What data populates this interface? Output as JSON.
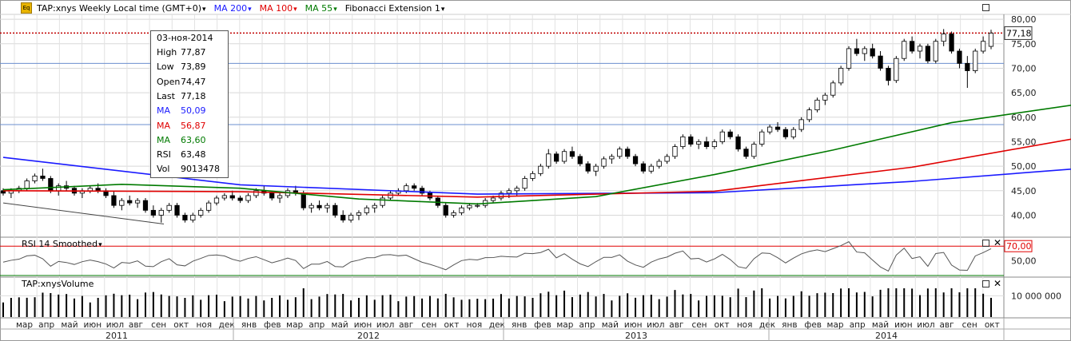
{
  "header": {
    "badge": "Eq",
    "symbol": "TAP:xnys Weekly Local time (GMT+0)",
    "ma200": "MA 200",
    "ma100": "MA 100",
    "ma55": "MA 55",
    "fib": "Fibonacci Extension 1",
    "colors": {
      "ma200": "#1a1aff",
      "ma100": "#e00000",
      "ma55": "#007a00"
    }
  },
  "tooltip": {
    "date": "03-ноя-2014",
    "rows": [
      {
        "label": "High",
        "value": "77,87",
        "color": "#000000"
      },
      {
        "label": "Low",
        "value": "73,89",
        "color": "#000000"
      },
      {
        "label": "Open",
        "value": "74,47",
        "color": "#000000"
      },
      {
        "label": "Last",
        "value": "77,18",
        "color": "#000000"
      },
      {
        "label": "MA",
        "value": "50,09",
        "color": "#1a1aff"
      },
      {
        "label": "MA",
        "value": "56,87",
        "color": "#e00000"
      },
      {
        "label": "MA",
        "value": "63,60",
        "color": "#007a00"
      },
      {
        "label": "RSI",
        "value": "63,48",
        "color": "#000000"
      },
      {
        "label": "Vol",
        "value": "9013478",
        "color": "#000000"
      }
    ]
  },
  "price_label": "77,18",
  "rsi_panel": {
    "title": "RSI 14 Smoothed",
    "level_label": "70,00",
    "ticks": [
      "50,00"
    ]
  },
  "volume_panel": {
    "title": "TAP:xnysVolume",
    "ticks": [
      "10 000 000"
    ]
  },
  "months": [
    "мар",
    "апр",
    "май",
    "июн",
    "июл",
    "авг",
    "сен",
    "окт",
    "ноя",
    "дек",
    "янв",
    "фев",
    "мар",
    "апр",
    "май",
    "июн",
    "июл",
    "авг",
    "сен",
    "окт",
    "ноя",
    "дек",
    "янв",
    "фев",
    "мар",
    "апр",
    "май",
    "июн",
    "июл",
    "авг",
    "сен",
    "окт",
    "ноя",
    "дек",
    "янв",
    "фев",
    "мар",
    "апр",
    "май",
    "июн",
    "июл",
    "авг",
    "сен",
    "окт"
  ],
  "years": [
    "2011",
    "2012",
    "2013",
    "2014"
  ],
  "chart_data": {
    "type": "candlestick",
    "x_range": [
      "2011-02",
      "2014-11"
    ],
    "ylim": [
      36,
      81
    ],
    "y_ticks": [
      40,
      45,
      50,
      55,
      60,
      65,
      70,
      75,
      80
    ],
    "last": 77.18,
    "candles_approx": [
      [
        45.0,
        45.5,
        44.0,
        44.5
      ],
      [
        44.5,
        45.5,
        43.5,
        45.0
      ],
      [
        45.0,
        46.0,
        44.5,
        45.5
      ],
      [
        45.5,
        47.5,
        45.0,
        47.0
      ],
      [
        47.0,
        48.5,
        46.5,
        48.0
      ],
      [
        48.0,
        49.5,
        47.0,
        47.5
      ],
      [
        47.5,
        48.0,
        44.5,
        45.0
      ],
      [
        45.0,
        46.5,
        44.0,
        46.0
      ],
      [
        46.0,
        47.0,
        45.0,
        45.5
      ],
      [
        45.5,
        46.0,
        44.0,
        44.5
      ],
      [
        44.5,
        45.5,
        43.5,
        45.0
      ],
      [
        45.0,
        46.0,
        44.5,
        45.5
      ],
      [
        45.5,
        46.5,
        44.5,
        45.0
      ],
      [
        45.0,
        45.5,
        43.5,
        44.0
      ],
      [
        44.0,
        45.0,
        41.5,
        42.0
      ],
      [
        42.0,
        43.5,
        41.0,
        43.0
      ],
      [
        43.0,
        44.0,
        42.0,
        42.5
      ],
      [
        42.5,
        43.5,
        41.5,
        43.0
      ],
      [
        43.0,
        43.5,
        40.5,
        41.0
      ],
      [
        41.0,
        42.0,
        39.5,
        40.0
      ],
      [
        40.0,
        41.5,
        38.5,
        41.0
      ],
      [
        41.0,
        42.5,
        40.5,
        42.0
      ],
      [
        42.0,
        42.5,
        39.5,
        40.0
      ],
      [
        40.0,
        40.5,
        38.5,
        39.0
      ],
      [
        39.0,
        40.5,
        38.5,
        40.0
      ],
      [
        40.0,
        41.5,
        39.5,
        41.0
      ],
      [
        41.0,
        43.0,
        40.5,
        42.5
      ],
      [
        42.5,
        44.0,
        42.0,
        43.5
      ],
      [
        43.5,
        44.5,
        43.0,
        44.0
      ],
      [
        44.0,
        45.0,
        43.0,
        43.5
      ],
      [
        43.5,
        44.0,
        42.5,
        43.0
      ],
      [
        43.0,
        44.5,
        42.5,
        44.0
      ],
      [
        44.0,
        45.5,
        43.5,
        45.0
      ],
      [
        45.0,
        46.0,
        44.0,
        44.5
      ],
      [
        44.5,
        45.0,
        43.0,
        43.5
      ],
      [
        43.5,
        44.5,
        42.5,
        44.0
      ],
      [
        44.0,
        45.5,
        43.5,
        45.0
      ],
      [
        45.0,
        46.0,
        44.0,
        44.5
      ],
      [
        44.5,
        45.0,
        41.0,
        41.5
      ],
      [
        41.5,
        42.5,
        40.5,
        42.0
      ],
      [
        42.0,
        43.0,
        41.0,
        41.5
      ],
      [
        41.5,
        42.5,
        40.5,
        42.0
      ],
      [
        42.0,
        42.5,
        39.5,
        40.0
      ],
      [
        40.0,
        41.0,
        38.5,
        39.0
      ],
      [
        39.0,
        40.5,
        38.5,
        40.0
      ],
      [
        40.0,
        41.0,
        39.0,
        40.5
      ],
      [
        40.5,
        42.0,
        40.0,
        41.5
      ],
      [
        41.5,
        42.5,
        40.5,
        42.0
      ],
      [
        42.0,
        44.0,
        41.5,
        43.5
      ],
      [
        43.5,
        45.0,
        43.0,
        44.5
      ],
      [
        44.5,
        45.5,
        44.0,
        45.0
      ],
      [
        45.0,
        46.5,
        44.5,
        46.0
      ],
      [
        46.0,
        46.5,
        45.0,
        45.5
      ],
      [
        45.5,
        46.0,
        44.0,
        44.5
      ],
      [
        44.5,
        45.0,
        43.0,
        43.5
      ],
      [
        43.5,
        44.0,
        41.5,
        42.0
      ],
      [
        42.0,
        42.5,
        39.5,
        40.0
      ],
      [
        40.0,
        41.0,
        39.5,
        40.5
      ],
      [
        40.5,
        42.0,
        40.0,
        41.5
      ],
      [
        41.5,
        42.5,
        41.0,
        42.0
      ],
      [
        42.0,
        42.5,
        41.5,
        42.0
      ],
      [
        42.0,
        43.5,
        41.5,
        43.0
      ],
      [
        43.0,
        44.0,
        42.5,
        43.5
      ],
      [
        43.5,
        45.0,
        43.0,
        44.5
      ],
      [
        44.5,
        45.5,
        43.5,
        45.0
      ],
      [
        45.0,
        46.0,
        44.0,
        45.5
      ],
      [
        45.5,
        48.0,
        45.0,
        47.5
      ],
      [
        47.5,
        49.0,
        47.0,
        48.5
      ],
      [
        48.5,
        50.5,
        48.0,
        50.0
      ],
      [
        50.0,
        53.5,
        49.5,
        52.5
      ],
      [
        52.5,
        53.0,
        50.5,
        51.0
      ],
      [
        51.0,
        53.5,
        50.5,
        53.0
      ],
      [
        53.0,
        54.0,
        51.5,
        52.0
      ],
      [
        52.0,
        52.5,
        50.0,
        50.5
      ],
      [
        50.5,
        51.0,
        48.5,
        49.0
      ],
      [
        49.0,
        50.5,
        48.0,
        50.0
      ],
      [
        50.0,
        52.0,
        49.5,
        51.5
      ],
      [
        51.5,
        52.5,
        50.5,
        52.0
      ],
      [
        52.0,
        54.0,
        51.5,
        53.5
      ],
      [
        53.5,
        54.0,
        51.5,
        52.0
      ],
      [
        52.0,
        52.5,
        50.0,
        50.5
      ],
      [
        50.5,
        51.0,
        48.5,
        49.0
      ],
      [
        49.0,
        50.5,
        48.5,
        50.0
      ],
      [
        50.0,
        51.5,
        49.5,
        51.0
      ],
      [
        51.0,
        52.5,
        50.5,
        52.0
      ],
      [
        52.0,
        54.5,
        51.5,
        54.0
      ],
      [
        54.0,
        56.5,
        53.5,
        56.0
      ],
      [
        56.0,
        56.5,
        54.0,
        54.5
      ],
      [
        54.5,
        55.5,
        53.5,
        55.0
      ],
      [
        55.0,
        56.0,
        53.5,
        54.0
      ],
      [
        54.0,
        55.5,
        53.5,
        55.0
      ],
      [
        55.0,
        57.5,
        54.5,
        57.0
      ],
      [
        57.0,
        57.5,
        55.5,
        56.0
      ],
      [
        56.0,
        56.5,
        53.0,
        53.5
      ],
      [
        53.5,
        54.0,
        51.5,
        52.0
      ],
      [
        52.0,
        55.0,
        51.5,
        54.5
      ],
      [
        54.5,
        57.5,
        54.0,
        57.0
      ],
      [
        57.0,
        58.5,
        56.5,
        58.0
      ],
      [
        58.0,
        59.0,
        57.0,
        57.5
      ],
      [
        57.5,
        58.0,
        55.5,
        56.0
      ],
      [
        56.0,
        58.0,
        55.5,
        57.5
      ],
      [
        57.5,
        60.0,
        57.0,
        59.5
      ],
      [
        59.5,
        62.0,
        59.0,
        61.5
      ],
      [
        61.5,
        64.0,
        61.0,
        63.5
      ],
      [
        63.5,
        65.0,
        62.5,
        64.5
      ],
      [
        64.5,
        67.5,
        64.0,
        67.0
      ],
      [
        67.0,
        70.5,
        66.5,
        70.0
      ],
      [
        70.0,
        74.5,
        69.5,
        74.0
      ],
      [
        74.0,
        76.0,
        72.5,
        73.0
      ],
      [
        73.0,
        74.5,
        71.5,
        74.0
      ],
      [
        74.0,
        75.0,
        72.0,
        72.5
      ],
      [
        72.5,
        73.5,
        69.5,
        70.0
      ],
      [
        70.0,
        70.5,
        66.5,
        67.5
      ],
      [
        67.5,
        72.5,
        67.0,
        72.0
      ],
      [
        72.0,
        76.0,
        71.5,
        75.5
      ],
      [
        75.5,
        76.5,
        73.0,
        73.5
      ],
      [
        73.5,
        75.0,
        72.0,
        74.5
      ],
      [
        74.5,
        75.0,
        71.0,
        71.5
      ],
      [
        71.5,
        76.0,
        71.0,
        75.5
      ],
      [
        75.5,
        78.0,
        74.5,
        77.0
      ],
      [
        77.0,
        77.5,
        73.0,
        73.5
      ],
      [
        73.5,
        74.0,
        70.0,
        71.0
      ],
      [
        71.0,
        72.5,
        66.0,
        69.5
      ],
      [
        69.5,
        74.0,
        69.0,
        73.5
      ],
      [
        73.5,
        76.5,
        73.0,
        75.5
      ],
      [
        74.47,
        77.87,
        73.89,
        77.18
      ]
    ],
    "series": [
      {
        "name": "MA 200",
        "color": "#1a1aff",
        "points": [
          [
            0,
            51.8
          ],
          [
            30,
            46.2
          ],
          [
            60,
            44.3
          ],
          [
            90,
            44.6
          ],
          [
            115,
            46.9
          ],
          [
            140,
            50.0
          ]
        ]
      },
      {
        "name": "MA 100",
        "color": "#e00000",
        "points": [
          [
            0,
            45.0
          ],
          [
            30,
            44.8
          ],
          [
            60,
            43.7
          ],
          [
            90,
            44.9
          ],
          [
            115,
            49.8
          ],
          [
            140,
            56.9
          ]
        ]
      },
      {
        "name": "MA 55",
        "color": "#007a00",
        "points": [
          [
            0,
            45.2
          ],
          [
            15,
            46.3
          ],
          [
            30,
            45.5
          ],
          [
            45,
            43.3
          ],
          [
            60,
            42.3
          ],
          [
            75,
            43.8
          ],
          [
            90,
            48.3
          ],
          [
            105,
            53.3
          ],
          [
            120,
            58.9
          ],
          [
            140,
            63.6
          ]
        ]
      }
    ],
    "hlines": [
      77.18,
      71.0,
      58.5
    ],
    "rsi": {
      "level": 70,
      "tick": 50
    },
    "volume": {
      "tick": 10000000
    }
  }
}
